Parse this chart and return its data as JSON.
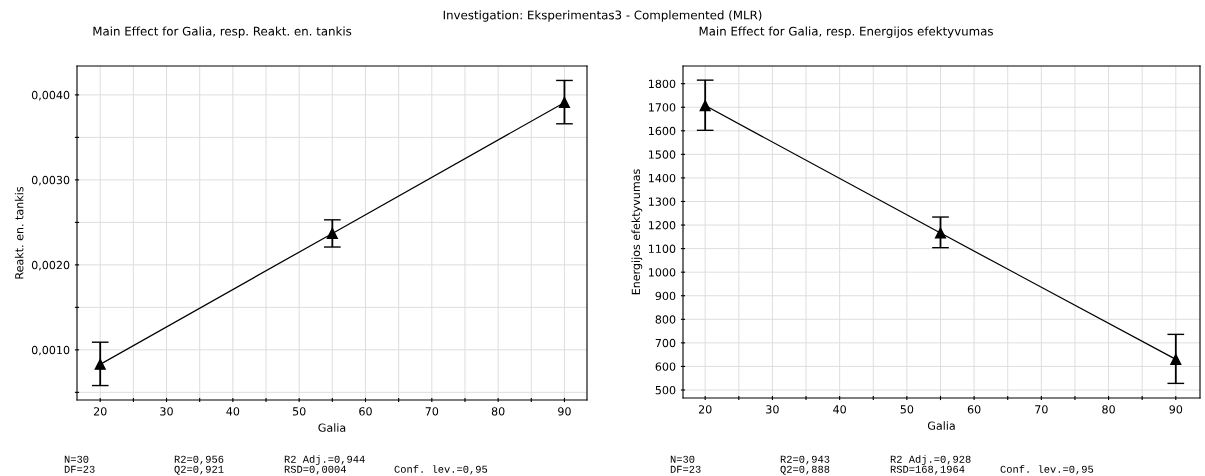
{
  "chart_data": [
    {
      "type": "line",
      "title": "Main Effect for Galia, resp. Reakt. en. tankis",
      "xlabel": "Galia",
      "ylabel": "Reakt. en. tankis",
      "annotations": [
        "Investigation: Eksperimentas3 - Complemented (MLR)",
        "N=30",
        "R2=0,956",
        "R2 Adj.=0,944",
        "DF=23",
        "Q2=0,921",
        "RSD=0,0004",
        "Conf. lev.=0,95"
      ],
      "x": [
        20,
        55,
        90
      ],
      "series": [
        {
          "color": "#000000",
          "values": [
            0.00083,
            0.00237,
            0.00391
          ],
          "errors": [
            [
              0.00058,
              0.00109
            ],
            [
              0.00221,
              0.00253
            ],
            [
              0.00366,
              0.00417
            ]
          ]
        }
      ],
      "xlim": [
        16.5,
        93.4
      ],
      "ylim": [
        0.00041,
        0.00434
      ],
      "xticks": [
        20,
        {
          "value": 25,
          "label": null
        },
        30,
        {
          "value": 35,
          "label": null
        },
        40,
        {
          "value": 45,
          "label": null
        },
        50,
        {
          "value": 55,
          "label": null
        },
        60,
        {
          "value": 65,
          "label": null
        },
        70,
        {
          "value": 75,
          "label": null
        },
        80,
        {
          "value": 85,
          "label": null
        },
        90
      ],
      "yticks": [
        {
          "value": 0.0005,
          "label": null
        },
        {
          "value": 0.001,
          "label": "0,0010"
        },
        {
          "value": 0.0015,
          "label": null
        },
        {
          "value": 0.002,
          "label": "0,0020"
        },
        {
          "value": 0.0025,
          "label": null
        },
        {
          "value": 0.003,
          "label": "0,0030"
        },
        {
          "value": 0.0035,
          "label": null
        },
        {
          "value": 0.004,
          "label": "0,0040"
        }
      ],
      "grid": true,
      "marker": "triangle",
      "line_style": "solid"
    },
    {
      "type": "line",
      "title": "Main Effect for Galia, resp. Energijos efektyvumas",
      "xlabel": "Galia",
      "ylabel": "Energijos efektyvumas",
      "annotations": [
        "N=30",
        "R2=0,943",
        "R2 Adj.=0,928",
        "DF=23",
        "Q2=0,888",
        "RSD=168,1964",
        "Conf. lev.=0,95"
      ],
      "x": [
        20,
        55,
        90
      ],
      "series": [
        {
          "color": "#000000",
          "values": [
            1707,
            1166,
            630
          ],
          "errors": [
            [
              1602,
              1815
            ],
            [
              1104,
              1234
            ],
            [
              528,
              736
            ]
          ]
        }
      ],
      "xlim": [
        16.7,
        93.6
      ],
      "ylim": [
        466,
        1875
      ],
      "xticks": [
        20,
        {
          "value": 25,
          "label": null
        },
        30,
        {
          "value": 35,
          "label": null
        },
        40,
        {
          "value": 45,
          "label": null
        },
        50,
        {
          "value": 55,
          "label": null
        },
        60,
        {
          "value": 65,
          "label": null
        },
        70,
        {
          "value": 75,
          "label": null
        },
        80,
        {
          "value": 85,
          "label": null
        },
        90
      ],
      "yticks": [
        500,
        600,
        700,
        800,
        900,
        1000,
        1100,
        1200,
        1300,
        1400,
        1500,
        1600,
        1700,
        1800
      ],
      "grid": true,
      "marker": "triangle",
      "line_style": "solid"
    }
  ]
}
